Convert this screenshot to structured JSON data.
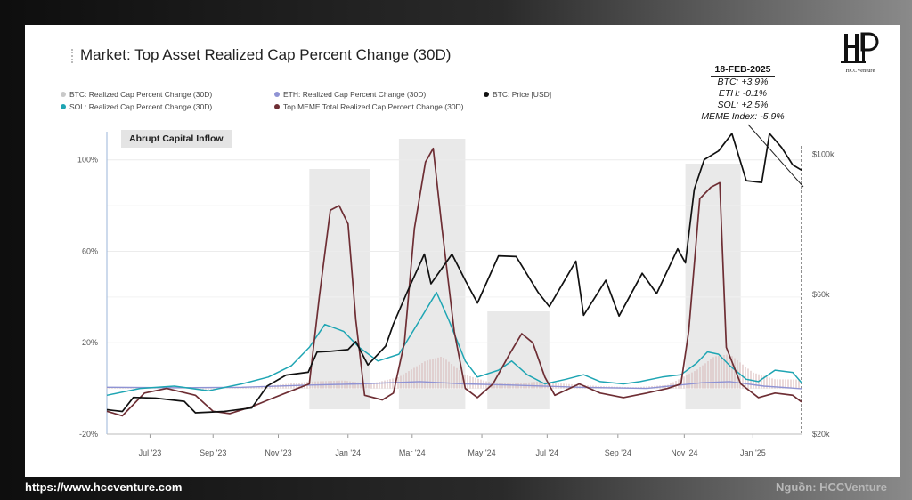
{
  "title": "Market: Top Asset Realized Cap Percent Change (30D)",
  "legend": [
    {
      "label": "BTC: Realized Cap Percent Change (30D)",
      "color": "#c9c9c9"
    },
    {
      "label": "ETH: Realized Cap Percent Change (30D)",
      "color": "#8f93d4"
    },
    {
      "label": "BTC: Price [USD]",
      "color": "#111111"
    },
    {
      "label": "SOL: Realized Cap Percent Change (30D)",
      "color": "#1ea5b3"
    },
    {
      "label": "Top MEME Total Realized Cap Percent Change (30D)",
      "color": "#6e2e34"
    }
  ],
  "annotation": {
    "date": "18-FEB-2025",
    "lines": [
      "BTC: +3.9%",
      "ETH: -0.1%",
      "SOL: +2.5%",
      "MEME Index: -5.9%"
    ]
  },
  "highlight_label": "Abrupt Capital Inflow",
  "logo_text": "HCCVenture",
  "footer": {
    "url": "https://www.hccventure.com",
    "source": "Nguồn: HCCVenture"
  },
  "chart_data": {
    "type": "line",
    "title": "Market: Top Asset Realized Cap Percent Change (30D)",
    "x_range": [
      "2023-06-01",
      "2025-02-18"
    ],
    "x_ticks": [
      "Jul '23",
      "Sep '23",
      "Nov '23",
      "Jan '24",
      "Mar '24",
      "May '24",
      "Jul '24",
      "Sep '24",
      "Nov '24",
      "Jan '25"
    ],
    "y_left_ticks": [
      "100%",
      "60%",
      "20%",
      "-20%"
    ],
    "y_left_range": [
      -20,
      110
    ],
    "y_right_ticks": [
      "$100k",
      "$60k",
      "$20k"
    ],
    "y_right_range": [
      20000,
      105000
    ],
    "right_scale": "linear",
    "grid": true,
    "legend_position": "top-left",
    "highlight_periods": [
      {
        "start": "2023-12-01",
        "end": "2024-01-25"
      },
      {
        "start": "2024-02-20",
        "end": "2024-04-20"
      },
      {
        "start": "2024-05-10",
        "end": "2024-07-05"
      },
      {
        "start": "2024-11-05",
        "end": "2024-12-25"
      }
    ],
    "series": [
      {
        "name": "BTC: Price [USD]",
        "axis": "right",
        "color": "#111111",
        "points": [
          [
            "2023-06-01",
            27000
          ],
          [
            "2023-06-15",
            26500
          ],
          [
            "2023-06-25",
            30500
          ],
          [
            "2023-07-15",
            30300
          ],
          [
            "2023-08-10",
            29400
          ],
          [
            "2023-08-20",
            26100
          ],
          [
            "2023-09-15",
            26500
          ],
          [
            "2023-10-10",
            27500
          ],
          [
            "2023-10-24",
            33800
          ],
          [
            "2023-11-10",
            36900
          ],
          [
            "2023-11-30",
            37700
          ],
          [
            "2023-12-08",
            43500
          ],
          [
            "2023-12-20",
            43700
          ],
          [
            "2024-01-05",
            44200
          ],
          [
            "2024-01-12",
            46500
          ],
          [
            "2024-01-23",
            39800
          ],
          [
            "2024-02-08",
            45200
          ],
          [
            "2024-02-15",
            51500
          ],
          [
            "2024-02-28",
            61000
          ],
          [
            "2024-03-14",
            71500
          ],
          [
            "2024-03-20",
            63000
          ],
          [
            "2024-04-08",
            71500
          ],
          [
            "2024-04-20",
            64000
          ],
          [
            "2024-05-01",
            57500
          ],
          [
            "2024-05-20",
            71000
          ],
          [
            "2024-06-05",
            70800
          ],
          [
            "2024-06-25",
            60500
          ],
          [
            "2024-07-05",
            56500
          ],
          [
            "2024-07-29",
            69500
          ],
          [
            "2024-08-05",
            54000
          ],
          [
            "2024-08-25",
            64000
          ],
          [
            "2024-09-06",
            53800
          ],
          [
            "2024-09-27",
            66000
          ],
          [
            "2024-10-10",
            60200
          ],
          [
            "2024-10-29",
            73000
          ],
          [
            "2024-11-05",
            69000
          ],
          [
            "2024-11-13",
            90000
          ],
          [
            "2024-11-22",
            98500
          ],
          [
            "2024-12-05",
            101000
          ],
          [
            "2024-12-17",
            106000
          ],
          [
            "2024-12-30",
            92500
          ],
          [
            "2025-01-13",
            92000
          ],
          [
            "2025-01-20",
            106000
          ],
          [
            "2025-01-31",
            102000
          ],
          [
            "2025-02-10",
            97000
          ],
          [
            "2025-02-18",
            95500
          ]
        ]
      },
      {
        "name": "Top MEME Total Realized Cap Percent Change (30D)",
        "axis": "left",
        "color": "#6e2e34",
        "points": [
          [
            "2023-06-01",
            -10
          ],
          [
            "2023-06-15",
            -12
          ],
          [
            "2023-07-05",
            -2
          ],
          [
            "2023-07-25",
            0
          ],
          [
            "2023-08-20",
            -3
          ],
          [
            "2023-09-05",
            -10
          ],
          [
            "2023-09-20",
            -11
          ],
          [
            "2023-10-10",
            -8
          ],
          [
            "2023-10-25",
            -5
          ],
          [
            "2023-11-15",
            -1
          ],
          [
            "2023-12-01",
            2
          ],
          [
            "2023-12-10",
            40
          ],
          [
            "2023-12-20",
            78
          ],
          [
            "2023-12-28",
            80
          ],
          [
            "2024-01-05",
            72
          ],
          [
            "2024-01-12",
            30
          ],
          [
            "2024-01-20",
            -3
          ],
          [
            "2024-02-05",
            -5
          ],
          [
            "2024-02-15",
            -2
          ],
          [
            "2024-02-25",
            20
          ],
          [
            "2024-03-05",
            70
          ],
          [
            "2024-03-15",
            99
          ],
          [
            "2024-03-22",
            105
          ],
          [
            "2024-03-30",
            70
          ],
          [
            "2024-04-10",
            25
          ],
          [
            "2024-04-20",
            0
          ],
          [
            "2024-05-01",
            -4
          ],
          [
            "2024-05-15",
            2
          ],
          [
            "2024-05-30",
            15
          ],
          [
            "2024-06-10",
            24
          ],
          [
            "2024-06-20",
            20
          ],
          [
            "2024-07-01",
            5
          ],
          [
            "2024-07-10",
            -3
          ],
          [
            "2024-08-01",
            2
          ],
          [
            "2024-08-20",
            -2
          ],
          [
            "2024-09-10",
            -4
          ],
          [
            "2024-10-01",
            -2
          ],
          [
            "2024-10-20",
            0
          ],
          [
            "2024-11-01",
            2
          ],
          [
            "2024-11-08",
            25
          ],
          [
            "2024-11-18",
            83
          ],
          [
            "2024-11-28",
            88
          ],
          [
            "2024-12-06",
            90
          ],
          [
            "2024-12-12",
            18
          ],
          [
            "2024-12-25",
            2
          ],
          [
            "2025-01-10",
            -4
          ],
          [
            "2025-01-25",
            -2
          ],
          [
            "2025-02-10",
            -3
          ],
          [
            "2025-02-18",
            -5.9
          ]
        ]
      },
      {
        "name": "SOL: Realized Cap Percent Change (30D)",
        "axis": "left",
        "color": "#1ea5b3",
        "points": [
          [
            "2023-06-01",
            -3
          ],
          [
            "2023-07-01",
            0
          ],
          [
            "2023-08-01",
            1
          ],
          [
            "2023-09-01",
            -1
          ],
          [
            "2023-10-01",
            2
          ],
          [
            "2023-10-25",
            5
          ],
          [
            "2023-11-15",
            10
          ],
          [
            "2023-12-01",
            18
          ],
          [
            "2023-12-15",
            28
          ],
          [
            "2024-01-01",
            25
          ],
          [
            "2024-01-15",
            18
          ],
          [
            "2024-02-01",
            12
          ],
          [
            "2024-02-20",
            15
          ],
          [
            "2024-03-10",
            30
          ],
          [
            "2024-03-25",
            42
          ],
          [
            "2024-04-05",
            30
          ],
          [
            "2024-04-20",
            12
          ],
          [
            "2024-05-01",
            5
          ],
          [
            "2024-05-20",
            8
          ],
          [
            "2024-06-01",
            12
          ],
          [
            "2024-06-15",
            6
          ],
          [
            "2024-07-01",
            2
          ],
          [
            "2024-07-20",
            4
          ],
          [
            "2024-08-05",
            6
          ],
          [
            "2024-08-20",
            3
          ],
          [
            "2024-09-10",
            2
          ],
          [
            "2024-09-25",
            3
          ],
          [
            "2024-10-15",
            5
          ],
          [
            "2024-11-01",
            6
          ],
          [
            "2024-11-15",
            11
          ],
          [
            "2024-11-25",
            16
          ],
          [
            "2024-12-05",
            15
          ],
          [
            "2024-12-15",
            10
          ],
          [
            "2024-12-30",
            4
          ],
          [
            "2025-01-10",
            3
          ],
          [
            "2025-01-25",
            8
          ],
          [
            "2025-02-10",
            7
          ],
          [
            "2025-02-18",
            2.5
          ]
        ]
      },
      {
        "name": "ETH: Realized Cap Percent Change (30D)",
        "axis": "left",
        "color": "#8f93d4",
        "points": [
          [
            "2023-06-01",
            0.5
          ],
          [
            "2023-08-01",
            0.3
          ],
          [
            "2023-10-01",
            0.5
          ],
          [
            "2023-12-01",
            1.5
          ],
          [
            "2024-01-15",
            2
          ],
          [
            "2024-03-10",
            3
          ],
          [
            "2024-04-20",
            2
          ],
          [
            "2024-06-01",
            1.5
          ],
          [
            "2024-08-01",
            0.5
          ],
          [
            "2024-10-01",
            0
          ],
          [
            "2024-11-20",
            2.5
          ],
          [
            "2024-12-15",
            3
          ],
          [
            "2025-01-15",
            1
          ],
          [
            "2025-02-18",
            -0.1
          ]
        ]
      },
      {
        "name": "BTC: Realized Cap Percent Change (30D)",
        "axis": "left",
        "color": "#d8b8b8",
        "style": "bars",
        "points": [
          [
            "2023-06-01",
            0.5
          ],
          [
            "2023-07-01",
            0.3
          ],
          [
            "2023-08-01",
            0.2
          ],
          [
            "2023-09-01",
            -0.5
          ],
          [
            "2023-10-01",
            0.5
          ],
          [
            "2023-11-01",
            1.5
          ],
          [
            "2023-12-01",
            3
          ],
          [
            "2024-01-01",
            3.5
          ],
          [
            "2024-01-25",
            2
          ],
          [
            "2024-02-20",
            5
          ],
          [
            "2024-03-15",
            12
          ],
          [
            "2024-03-30",
            14
          ],
          [
            "2024-04-20",
            6
          ],
          [
            "2024-05-10",
            3
          ],
          [
            "2024-06-01",
            2
          ],
          [
            "2024-06-25",
            3
          ],
          [
            "2024-07-20",
            2
          ],
          [
            "2024-08-20",
            1
          ],
          [
            "2024-09-20",
            0.5
          ],
          [
            "2024-10-20",
            1.5
          ],
          [
            "2024-11-15",
            8
          ],
          [
            "2024-12-01",
            14
          ],
          [
            "2024-12-15",
            15
          ],
          [
            "2025-01-05",
            7
          ],
          [
            "2025-01-25",
            4
          ],
          [
            "2025-02-18",
            3.9
          ]
        ]
      }
    ]
  }
}
